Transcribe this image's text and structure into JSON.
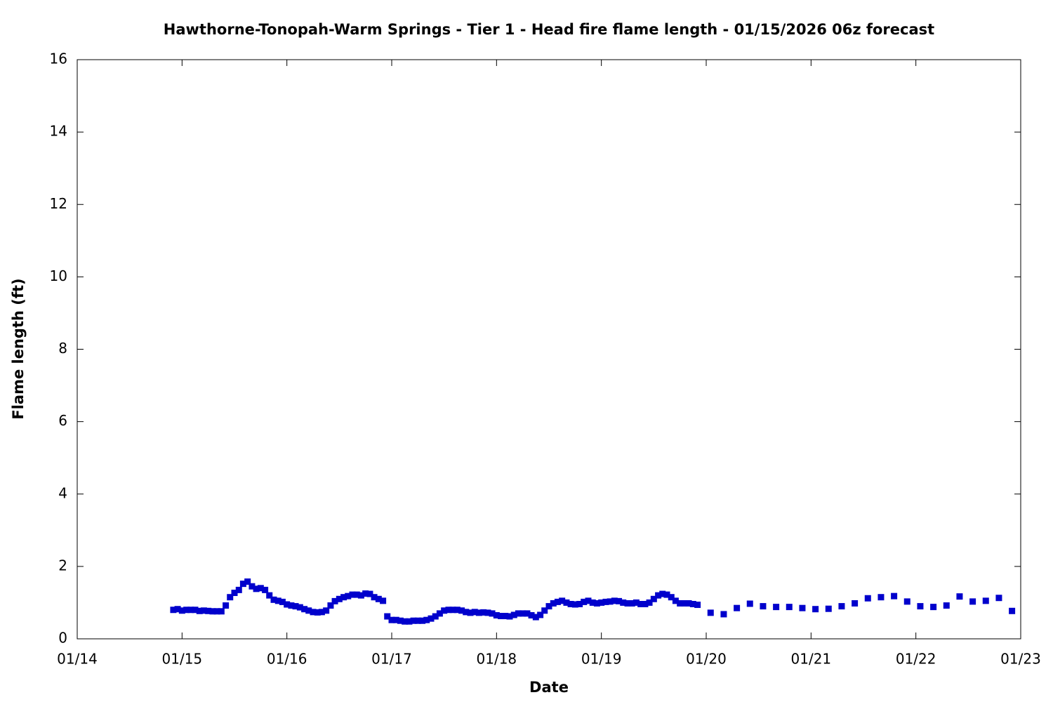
{
  "chart_data": {
    "type": "scatter",
    "title": "Hawthorne-Tonopah-Warm Springs - Tier 1 - Head fire flame length - 01/15/2026 06z forecast",
    "x_label": "Date",
    "y_label": "Flame length (ft)",
    "xlim": [
      14,
      23
    ],
    "xticks": [
      {
        "value": 14,
        "label": "01/14"
      },
      {
        "value": 15,
        "label": "01/15"
      },
      {
        "value": 16,
        "label": "01/16"
      },
      {
        "value": 17,
        "label": "01/17"
      },
      {
        "value": 18,
        "label": "01/18"
      },
      {
        "value": 19,
        "label": "01/19"
      },
      {
        "value": 20,
        "label": "01/20"
      },
      {
        "value": 21,
        "label": "01/21"
      },
      {
        "value": 22,
        "label": "01/22"
      },
      {
        "value": 23,
        "label": "01/23"
      }
    ],
    "ylim": [
      0,
      16
    ],
    "yticks": [
      0,
      2,
      4,
      6,
      8,
      10,
      12,
      14,
      16
    ],
    "series": [
      {
        "color": "#0000cc",
        "x": [
          14.917,
          14.958,
          15.0,
          15.042,
          15.083,
          15.125,
          15.167,
          15.208,
          15.25,
          15.292,
          15.333,
          15.375,
          15.417,
          15.458,
          15.5,
          15.542,
          15.583,
          15.625,
          15.667,
          15.708,
          15.75,
          15.792,
          15.833,
          15.875,
          15.917,
          15.958,
          16.0,
          16.042,
          16.083,
          16.125,
          16.167,
          16.208,
          16.25,
          16.292,
          16.333,
          16.375,
          16.417,
          16.458,
          16.5,
          16.542,
          16.583,
          16.625,
          16.667,
          16.708,
          16.75,
          16.792,
          16.833,
          16.875,
          16.917,
          16.958,
          17.0,
          17.042,
          17.083,
          17.125,
          17.167,
          17.208,
          17.25,
          17.292,
          17.333,
          17.375,
          17.417,
          17.458,
          17.5,
          17.542,
          17.583,
          17.625,
          17.667,
          17.708,
          17.75,
          17.792,
          17.833,
          17.875,
          17.917,
          17.958,
          18.0,
          18.042,
          18.083,
          18.125,
          18.167,
          18.208,
          18.25,
          18.292,
          18.333,
          18.375,
          18.417,
          18.458,
          18.5,
          18.542,
          18.583,
          18.625,
          18.667,
          18.708,
          18.75,
          18.792,
          18.833,
          18.875,
          18.917,
          18.958,
          19.0,
          19.042,
          19.083,
          19.125,
          19.167,
          19.208,
          19.25,
          19.292,
          19.333,
          19.375,
          19.417,
          19.458,
          19.5,
          19.542,
          19.583,
          19.625,
          19.667,
          19.708,
          19.75,
          19.792,
          19.833,
          19.875,
          19.917,
          20.042,
          20.167,
          20.292,
          20.417,
          20.542,
          20.667,
          20.792,
          20.917,
          21.042,
          21.167,
          21.292,
          21.417,
          21.542,
          21.667,
          21.792,
          21.917,
          22.042,
          22.167,
          22.292,
          22.417,
          22.542,
          22.667,
          22.792,
          22.917
        ],
        "values": [
          0.8,
          0.82,
          0.78,
          0.8,
          0.8,
          0.8,
          0.77,
          0.78,
          0.77,
          0.76,
          0.76,
          0.76,
          0.92,
          1.15,
          1.27,
          1.35,
          1.52,
          1.58,
          1.45,
          1.38,
          1.4,
          1.35,
          1.2,
          1.08,
          1.05,
          1.02,
          0.95,
          0.92,
          0.9,
          0.87,
          0.82,
          0.78,
          0.74,
          0.73,
          0.74,
          0.78,
          0.92,
          1.04,
          1.1,
          1.15,
          1.18,
          1.22,
          1.22,
          1.2,
          1.25,
          1.24,
          1.15,
          1.1,
          1.05,
          0.62,
          0.52,
          0.52,
          0.5,
          0.48,
          0.48,
          0.5,
          0.5,
          0.5,
          0.52,
          0.56,
          0.62,
          0.7,
          0.78,
          0.8,
          0.8,
          0.8,
          0.78,
          0.74,
          0.72,
          0.74,
          0.72,
          0.73,
          0.72,
          0.7,
          0.65,
          0.63,
          0.63,
          0.62,
          0.66,
          0.7,
          0.7,
          0.7,
          0.65,
          0.6,
          0.66,
          0.78,
          0.9,
          0.98,
          1.02,
          1.05,
          1.0,
          0.96,
          0.95,
          0.96,
          1.02,
          1.05,
          1.0,
          0.98,
          1.0,
          1.02,
          1.03,
          1.05,
          1.04,
          1.0,
          0.98,
          0.98,
          1.0,
          0.96,
          0.96,
          1.0,
          1.1,
          1.2,
          1.24,
          1.22,
          1.15,
          1.05,
          0.98,
          0.98,
          0.98,
          0.96,
          0.94,
          0.72,
          0.68,
          0.85,
          0.97,
          0.9,
          0.88,
          0.88,
          0.85,
          0.82,
          0.83,
          0.9,
          0.98,
          1.12,
          1.15,
          1.18,
          1.03,
          0.9,
          0.88,
          0.92,
          1.17,
          1.03,
          1.05,
          1.13,
          0.77
        ]
      }
    ]
  }
}
